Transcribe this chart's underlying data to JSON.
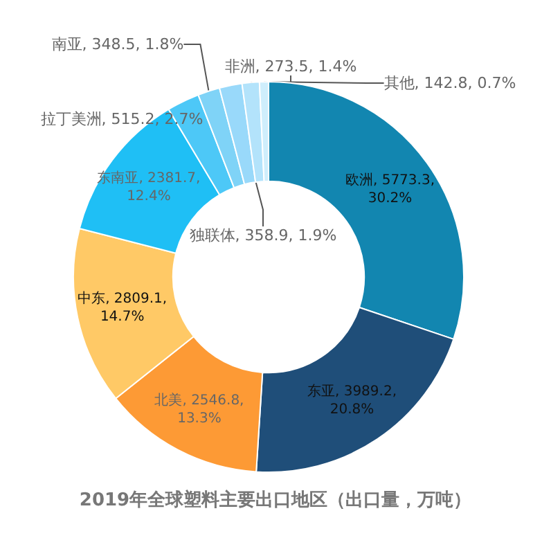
{
  "chart_data": {
    "type": "donut",
    "title": "2019年全球塑料主要出口地区（出口量，万吨）",
    "categories": [
      "欧洲",
      "东亚",
      "北美",
      "中东",
      "东南亚",
      "拉丁美洲",
      "南亚",
      "独联体",
      "非洲",
      "其他"
    ],
    "values": [
      5773.3,
      3989.2,
      2546.8,
      2809.1,
      2381.7,
      515.2,
      348.5,
      358.9,
      273.5,
      142.8
    ],
    "value_labels": [
      "5773.3, 30.2%",
      "3989.2, 20.8%",
      "2546.8, 13.3%",
      "2809.1, 14.7%",
      "2381.7, 12.4%",
      "515.2, 2.7%",
      "348.5, 1.8%",
      "358.9, 1.9%",
      "273.5, 1.4%",
      "142.8, 0.7%"
    ],
    "colors": [
      "#1286b0",
      "#1f4e79",
      "#fd9a35",
      "#ffc966",
      "#1fbff5",
      "#4dc8f7",
      "#7fd3f7",
      "#99d9fa",
      "#b3e3fb",
      "#cfeefc"
    ],
    "legend": false
  }
}
